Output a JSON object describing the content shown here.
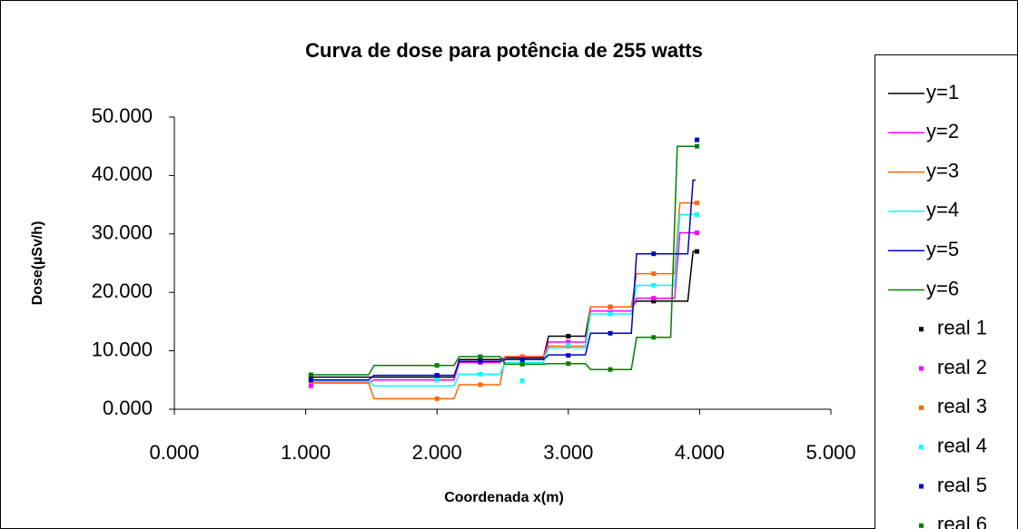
{
  "chart_data": {
    "type": "line",
    "title": "Curva de dose para potência de 255 watts",
    "xlabel": "Coordenada x(m)",
    "ylabel": "Dose(µSv/h)",
    "xlim": [
      0,
      5
    ],
    "ylim": [
      0,
      50
    ],
    "xticks": [
      {
        "value": 0,
        "label": "0.000"
      },
      {
        "value": 1,
        "label": "1.000"
      },
      {
        "value": 2,
        "label": "2.000"
      },
      {
        "value": 3,
        "label": "3.000"
      },
      {
        "value": 4,
        "label": "4.000"
      },
      {
        "value": 5,
        "label": "5.000"
      }
    ],
    "yticks": [
      {
        "value": 0,
        "label": "0.000"
      },
      {
        "value": 10,
        "label": "10.000"
      },
      {
        "value": 20,
        "label": "20.000"
      },
      {
        "value": 30,
        "label": "30.000"
      },
      {
        "value": 40,
        "label": "40.000"
      },
      {
        "value": 50,
        "label": "50.000"
      }
    ],
    "grid": false,
    "legend": "right",
    "series": [
      {
        "name": "y=1",
        "color": "#000000",
        "marker": false,
        "x": [
          1.04,
          1.48,
          1.52,
          2.13,
          2.17,
          2.48,
          2.52,
          2.81,
          2.85,
          3.13,
          3.17,
          3.48,
          3.52,
          3.91,
          3.95,
          3.97
        ],
        "values": [
          5.5,
          5.5,
          5.5,
          5.5,
          8.5,
          8.5,
          8.8,
          8.8,
          12.5,
          12.5,
          17.5,
          17.5,
          18.5,
          18.5,
          27,
          27
        ]
      },
      {
        "name": "y=2",
        "color": "#ff00ff",
        "marker": false,
        "x": [
          1.04,
          1.48,
          1.52,
          2.13,
          2.17,
          2.48,
          2.52,
          2.81,
          2.85,
          3.13,
          3.17,
          3.48,
          3.52,
          3.81,
          3.85,
          3.97
        ],
        "values": [
          4.5,
          4.5,
          5,
          5,
          8,
          8,
          9,
          9,
          11.5,
          11.5,
          16.8,
          16.8,
          19,
          19,
          30.2,
          30.2
        ]
      },
      {
        "name": "y=3",
        "color": "#ff6600",
        "marker": false,
        "x": [
          1.04,
          1.48,
          1.52,
          2.13,
          2.17,
          2.48,
          2.52,
          2.81,
          2.85,
          3.13,
          3.17,
          3.48,
          3.52,
          3.81,
          3.85,
          3.97
        ],
        "values": [
          4.5,
          4.5,
          1.8,
          1.8,
          4.2,
          4.2,
          9,
          9,
          10.8,
          10.8,
          17.5,
          17.5,
          23.2,
          23.2,
          35.3,
          35.3
        ]
      },
      {
        "name": "y=4",
        "color": "#00ffff",
        "marker": false,
        "x": [
          1.04,
          1.48,
          1.52,
          2.13,
          2.17,
          2.48,
          2.52,
          2.81,
          2.85,
          3.13,
          3.17,
          3.48,
          3.52,
          3.81,
          3.85,
          3.97
        ],
        "values": [
          4.8,
          4.8,
          4,
          4,
          6,
          6,
          8,
          8,
          10.5,
          10.5,
          16.3,
          16.3,
          21.2,
          21.2,
          33.3,
          33.3
        ]
      },
      {
        "name": "y=5",
        "color": "#0000cc",
        "marker": false,
        "x": [
          1.04,
          1.48,
          1.52,
          2.13,
          2.17,
          2.48,
          2.52,
          2.81,
          2.85,
          3.13,
          3.17,
          3.48,
          3.52,
          3.91,
          3.95,
          3.97
        ],
        "values": [
          5,
          5,
          5.8,
          5.8,
          8.2,
          8.2,
          8.5,
          8.5,
          9.3,
          9.3,
          13,
          13,
          26.6,
          26.6,
          39.2,
          39.2
        ]
      },
      {
        "name": "y=6",
        "color": "#008000",
        "marker": false,
        "x": [
          1.04,
          1.48,
          1.52,
          2.13,
          2.17,
          2.48,
          2.52,
          2.81,
          2.85,
          3.13,
          3.17,
          3.48,
          3.52,
          3.78,
          3.83,
          3.97
        ],
        "values": [
          5.9,
          5.9,
          7.5,
          7.5,
          9,
          9,
          7.7,
          7.7,
          7.8,
          7.8,
          6.8,
          6.8,
          12.3,
          12.3,
          45,
          45
        ]
      },
      {
        "name": "real 1",
        "color": "#000000",
        "marker": true,
        "x": [
          1.04,
          2.0,
          2.33,
          2.65,
          3.0,
          3.32,
          3.65,
          3.98
        ],
        "values": [
          5.5,
          5.8,
          8.5,
          8.8,
          12.5,
          17.5,
          18.5,
          27
        ]
      },
      {
        "name": "real 2",
        "color": "#ff00ff",
        "marker": true,
        "x": [
          1.04,
          2.0,
          2.33,
          2.65,
          3.0,
          3.32,
          3.65,
          3.98
        ],
        "values": [
          4,
          5,
          8,
          9,
          11.5,
          16.5,
          19,
          30.2
        ]
      },
      {
        "name": "real 3",
        "color": "#ff6600",
        "marker": true,
        "x": [
          1.04,
          2.0,
          2.33,
          2.65,
          3.0,
          3.32,
          3.65,
          3.98
        ],
        "values": [
          4.8,
          1.8,
          4.2,
          9,
          10.8,
          17.5,
          23.2,
          35.3
        ]
      },
      {
        "name": "real 4",
        "color": "#00ffff",
        "marker": true,
        "x": [
          1.04,
          2.0,
          2.33,
          2.65,
          3.0,
          3.32,
          3.65,
          3.98
        ],
        "values": [
          5,
          5,
          6,
          4.9,
          11,
          16.3,
          21.2,
          33.3
        ]
      },
      {
        "name": "real 5",
        "color": "#0000cc",
        "marker": true,
        "x": [
          1.04,
          2.0,
          2.33,
          2.65,
          3.0,
          3.32,
          3.65,
          3.98
        ],
        "values": [
          5,
          5.8,
          8.2,
          8.5,
          9.2,
          13,
          26.6,
          46.1
        ]
      },
      {
        "name": "real 6",
        "color": "#008000",
        "marker": true,
        "x": [
          1.04,
          2.0,
          2.33,
          2.65,
          3.0,
          3.32,
          3.65,
          3.98
        ],
        "values": [
          5.9,
          7.5,
          9,
          7.7,
          7.8,
          6.8,
          12.3,
          45
        ]
      }
    ]
  }
}
